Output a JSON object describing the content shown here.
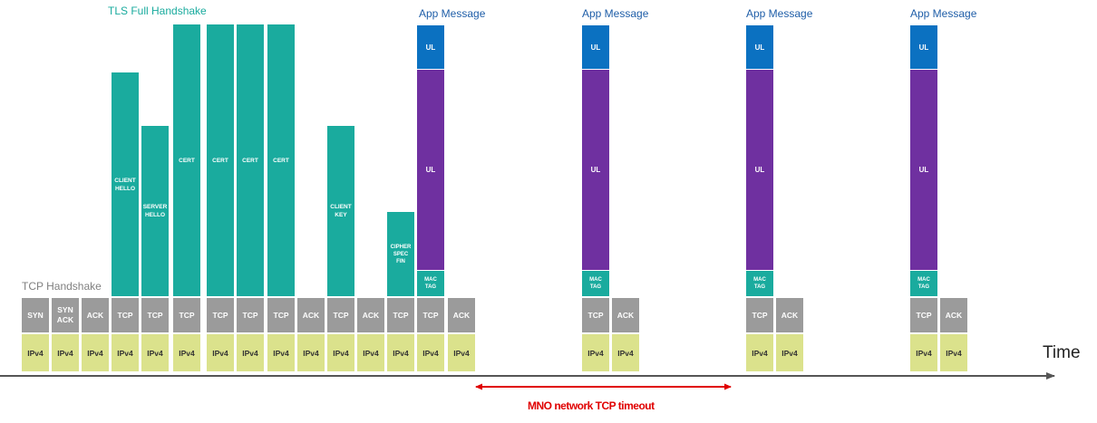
{
  "titles": {
    "tls_handshake": "TLS Full Handshake",
    "tcp_handshake": "TCP Handshake",
    "app_message": "App Message"
  },
  "axis": {
    "time_label": "Time",
    "timeout_label": "MNO network TCP timeout"
  },
  "columns": [
    {
      "bottom": "IPv4",
      "mid": "SYN"
    },
    {
      "bottom": "IPv4",
      "mid": "SYN\nACK"
    },
    {
      "bottom": "IPv4",
      "mid": "ACK"
    },
    {
      "bottom": "IPv4",
      "mid": "TCP",
      "tls": "CLIENT\nHELLO"
    },
    {
      "bottom": "IPv4",
      "mid": "TCP",
      "tls": "SERVER\nHELLO"
    },
    {
      "bottom": "IPv4",
      "mid": "TCP",
      "tls": "CERT"
    },
    {
      "bottom": "IPv4",
      "mid": "TCP",
      "tls": "CERT"
    },
    {
      "bottom": "IPv4",
      "mid": "TCP",
      "tls": "CERT"
    },
    {
      "bottom": "IPv4",
      "mid": "TCP",
      "tls": "CERT"
    },
    {
      "bottom": "IPv4",
      "mid": "ACK"
    },
    {
      "bottom": "IPv4",
      "mid": "TCP",
      "tls": "CLIENT\nKEY"
    },
    {
      "bottom": "IPv4",
      "mid": "ACK"
    },
    {
      "bottom": "IPv4",
      "mid": "TCP",
      "tls": "CIPHER\nSPEC\nFIN"
    },
    {
      "bottom": "IPv4",
      "mid": "TCP",
      "app": {
        "head": "UL",
        "body": "UL",
        "tag": "MAC\nTAG"
      }
    },
    {
      "bottom": "IPv4",
      "mid": "ACK"
    },
    {
      "bottom": "IPv4",
      "mid": "TCP",
      "app": {
        "head": "UL",
        "body": "UL",
        "tag": "MAC\nTAG"
      }
    },
    {
      "bottom": "IPv4",
      "mid": "ACK"
    },
    {
      "bottom": "IPv4",
      "mid": "TCP",
      "app": {
        "head": "UL",
        "body": "UL",
        "tag": "MAC\nTAG"
      }
    },
    {
      "bottom": "IPv4",
      "mid": "ACK"
    },
    {
      "bottom": "IPv4",
      "mid": "TCP",
      "app": {
        "head": "UL",
        "body": "UL",
        "tag": "MAC\nTAG"
      }
    },
    {
      "bottom": "IPv4",
      "mid": "ACK"
    }
  ]
}
